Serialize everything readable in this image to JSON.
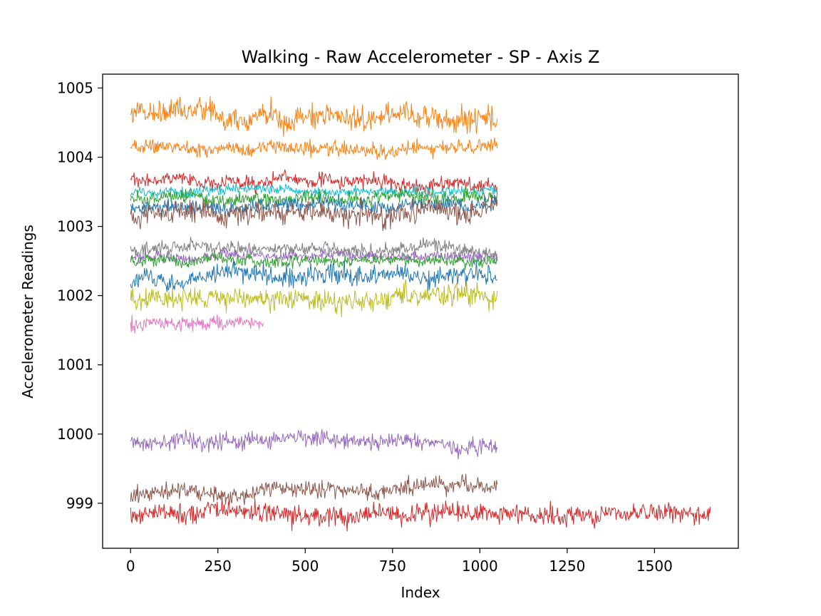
{
  "chart_data": {
    "type": "line",
    "title": "Walking - Raw Accelerometer - SP - Axis Z",
    "xlabel": "Index",
    "ylabel": "Accelerometer Readings",
    "xlim": [
      -80,
      1740
    ],
    "ylim": [
      998.35,
      1005.2
    ],
    "x_ticks": [
      0,
      250,
      500,
      750,
      1000,
      1250,
      1500
    ],
    "y_ticks": [
      999,
      1000,
      1001,
      1002,
      1003,
      1004,
      1005
    ],
    "grid": false,
    "legend": "none",
    "series": [
      {
        "color": "#ff7f0e",
        "length": 1050,
        "mean": 1004.62,
        "noise": 0.09,
        "drift": -0.08
      },
      {
        "color": "#ff7f0e",
        "length": 1050,
        "mean": 1004.15,
        "noise": 0.05,
        "drift": -0.03
      },
      {
        "color": "#d62728",
        "length": 1050,
        "mean": 1003.68,
        "noise": 0.05,
        "drift": -0.06
      },
      {
        "color": "#17becf",
        "length": 1050,
        "mean": 1003.52,
        "noise": 0.04,
        "drift": 0.0
      },
      {
        "color": "#2ca02c",
        "length": 1050,
        "mean": 1003.42,
        "noise": 0.05,
        "drift": 0.0
      },
      {
        "color": "#1f77b4",
        "length": 1050,
        "mean": 1003.3,
        "noise": 0.05,
        "drift": 0.0
      },
      {
        "color": "#8c564b",
        "length": 1050,
        "mean": 1003.2,
        "noise": 0.08,
        "drift": 0.02
      },
      {
        "color": "#7f7f7f",
        "length": 1050,
        "mean": 1002.65,
        "noise": 0.05,
        "drift": 0.0
      },
      {
        "color": "#9467bd",
        "length": 1050,
        "mean": 1002.57,
        "noise": 0.04,
        "drift": 0.0
      },
      {
        "color": "#2ca02c",
        "length": 1050,
        "mean": 1002.52,
        "noise": 0.04,
        "drift": 0.0
      },
      {
        "color": "#1f77b4",
        "length": 1050,
        "mean": 1002.22,
        "noise": 0.07,
        "drift": 0.05
      },
      {
        "color": "#bcbd22",
        "length": 1050,
        "mean": 1001.95,
        "noise": 0.08,
        "drift": 0.0
      },
      {
        "color": "#e377c2",
        "length": 380,
        "mean": 1001.58,
        "noise": 0.05,
        "drift": 0.0
      },
      {
        "color": "#9467bd",
        "length": 1050,
        "mean": 999.88,
        "noise": 0.06,
        "drift": 0.0
      },
      {
        "color": "#8c564b",
        "length": 1050,
        "mean": 999.12,
        "noise": 0.06,
        "drift": 0.15
      },
      {
        "color": "#d62728",
        "length": 1660,
        "mean": 998.84,
        "noise": 0.07,
        "drift": 0.0
      }
    ]
  }
}
